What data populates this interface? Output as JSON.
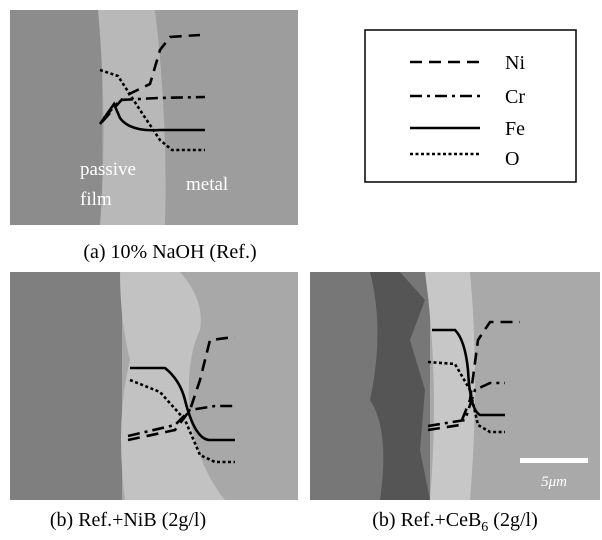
{
  "legend": [
    "Ni",
    "Cr",
    "Fe",
    "O"
  ],
  "panel_a": {
    "film_line1": "passive",
    "film_line2": "film",
    "metal": "metal",
    "caption": "(a) 10% NaOH (Ref.)"
  },
  "panel_b": {
    "caption": "(b) Ref.+NiB (2g/l)"
  },
  "panel_c": {
    "caption_main": "(b) Ref.+CeB",
    "caption_sub": "6",
    "caption_end": " (2g/l)",
    "scale_bar": "5μm"
  }
}
